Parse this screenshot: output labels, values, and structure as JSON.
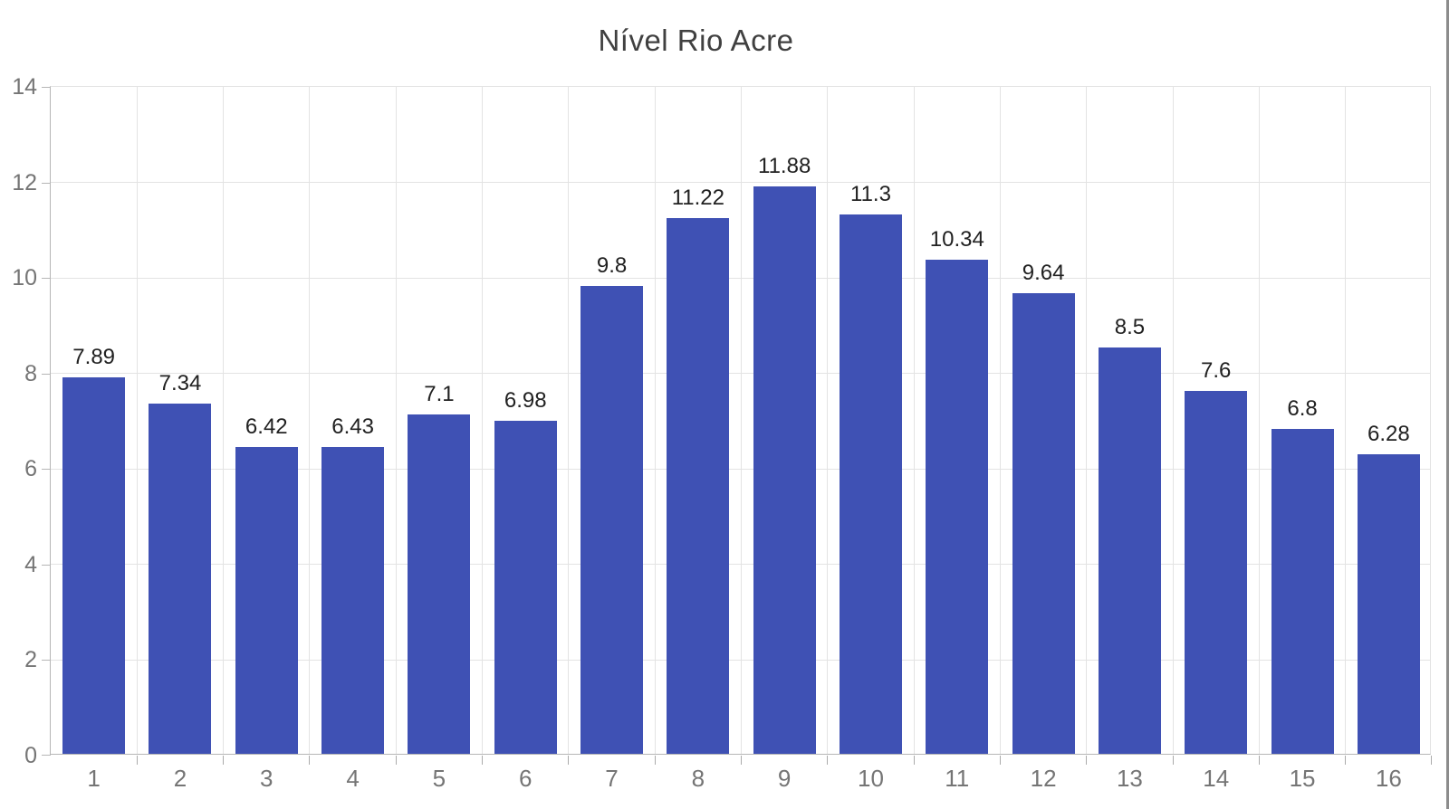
{
  "chart_data": {
    "type": "bar",
    "title": "Nível Rio Acre",
    "categories": [
      "1",
      "2",
      "3",
      "4",
      "5",
      "6",
      "7",
      "8",
      "9",
      "10",
      "11",
      "12",
      "13",
      "14",
      "15",
      "16"
    ],
    "values": [
      7.89,
      7.34,
      6.42,
      6.43,
      7.1,
      6.98,
      9.8,
      11.22,
      11.88,
      11.3,
      10.34,
      9.64,
      8.5,
      7.6,
      6.8,
      6.28
    ],
    "value_labels": [
      "7.89",
      "7.34",
      "6.42",
      "6.43",
      "7.1",
      "6.98",
      "9.8",
      "11.22",
      "11.88",
      "11.3",
      "10.34",
      "9.64",
      "8.5",
      "7.6",
      "6.8",
      "6.28"
    ],
    "xlabel": "",
    "ylabel": "",
    "ylim": [
      0,
      14
    ],
    "y_ticks": [
      0,
      2,
      4,
      6,
      8,
      10,
      12,
      14
    ],
    "grid": true,
    "legend": "none",
    "colors": {
      "bar": "#3F51B4",
      "title": "#404040",
      "data_label": "#212121",
      "axis_label": "#757575",
      "gridline": "#E3E3E3",
      "axis_line": "#B6B6B6",
      "tick_mark": "#ABABAB",
      "background": "#FFFFFF",
      "window_edge": "#8C8C8C"
    }
  }
}
